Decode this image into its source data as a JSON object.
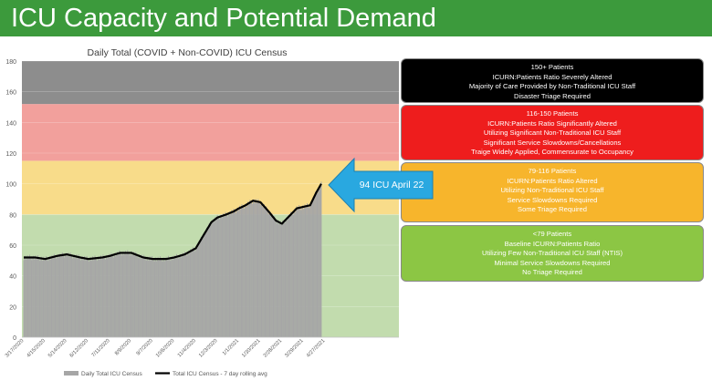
{
  "header": {
    "title": "ICU Capacity and Potential Demand"
  },
  "colors": {
    "header_green": "#3c9a3c",
    "zone_gray": "#8d8d8d",
    "zone_red": "#f2a09c",
    "zone_yellow": "#f8dc8a",
    "zone_green": "#c2dcae",
    "bar_gray": "#a6a6a6",
    "line_black": "#000000",
    "callout_blue": "#29a8e0"
  },
  "chart_data": {
    "type": "bar",
    "title": "Daily Total (COVID + Non-COVID) ICU Census",
    "xlabel": "",
    "ylabel": "",
    "ylim": [
      0,
      180
    ],
    "yticks": [
      0,
      20,
      40,
      60,
      80,
      100,
      120,
      140,
      160,
      180
    ],
    "x_tick_labels": [
      "3/17/2020",
      "4/15/2020",
      "5/14/2020",
      "6/12/2020",
      "7/11/2020",
      "8/9/2020",
      "9/7/2020",
      "10/6/2020",
      "11/4/2020",
      "12/3/2020",
      "1/1/2021",
      "1/30/2021",
      "2/28/2021",
      "3/29/2021",
      "4/27/2021"
    ],
    "zones": [
      {
        "from": 0,
        "to": 80,
        "color": "#c2dcae"
      },
      {
        "from": 80,
        "to": 115,
        "color": "#f8dc8a"
      },
      {
        "from": 115,
        "to": 152,
        "color": "#f2a09c"
      },
      {
        "from": 152,
        "to": 180,
        "color": "#8d8d8d"
      }
    ],
    "series": [
      {
        "name": "Daily Total ICU Census",
        "type": "bar",
        "color": "#a6a6a6"
      },
      {
        "name": "Total ICU Census - 7 day rolling avg",
        "type": "line",
        "color": "#000000"
      }
    ],
    "keypoints": [
      {
        "x": "3/17/2020",
        "y": 52
      },
      {
        "x": "4/1/2020",
        "y": 52
      },
      {
        "x": "4/15/2020",
        "y": 51
      },
      {
        "x": "5/1/2020",
        "y": 53
      },
      {
        "x": "5/14/2020",
        "y": 54
      },
      {
        "x": "6/1/2020",
        "y": 52
      },
      {
        "x": "6/12/2020",
        "y": 51
      },
      {
        "x": "7/1/2020",
        "y": 52
      },
      {
        "x": "7/11/2020",
        "y": 53
      },
      {
        "x": "7/25/2020",
        "y": 55
      },
      {
        "x": "8/9/2020",
        "y": 55
      },
      {
        "x": "8/25/2020",
        "y": 52
      },
      {
        "x": "9/7/2020",
        "y": 51
      },
      {
        "x": "9/25/2020",
        "y": 51
      },
      {
        "x": "10/6/2020",
        "y": 52
      },
      {
        "x": "10/20/2020",
        "y": 54
      },
      {
        "x": "11/4/2020",
        "y": 58
      },
      {
        "x": "11/15/2020",
        "y": 67
      },
      {
        "x": "11/25/2020",
        "y": 75
      },
      {
        "x": "12/3/2020",
        "y": 78
      },
      {
        "x": "12/15/2020",
        "y": 80
      },
      {
        "x": "12/25/2020",
        "y": 82
      },
      {
        "x": "1/1/2021",
        "y": 84
      },
      {
        "x": "1/10/2021",
        "y": 86
      },
      {
        "x": "1/20/2021",
        "y": 89
      },
      {
        "x": "1/30/2021",
        "y": 88
      },
      {
        "x": "2/10/2021",
        "y": 82
      },
      {
        "x": "2/20/2021",
        "y": 76
      },
      {
        "x": "2/28/2021",
        "y": 74
      },
      {
        "x": "3/10/2021",
        "y": 79
      },
      {
        "x": "3/20/2021",
        "y": 84
      },
      {
        "x": "3/29/2021",
        "y": 85
      },
      {
        "x": "4/7/2021",
        "y": 86
      },
      {
        "x": "4/15/2021",
        "y": 94
      },
      {
        "x": "4/22/2021",
        "y": 100
      }
    ],
    "legend": {
      "position": "bottom",
      "bar_label": "Daily Total ICU Census",
      "line_label": "Total ICU Census - 7 day rolling avg"
    },
    "annotation": {
      "text": "94 ICU April 22"
    }
  },
  "tiers": [
    {
      "lines": [
        "150+ Patients",
        "ICURN:Patients Ratio Severely Altered",
        "Majority of Care Provided by Non-Traditional ICU Staff",
        "Disaster Triage Required"
      ]
    },
    {
      "lines": [
        "116-150 Patients",
        "ICURN:Patients Ratio Significantly Altered",
        "Utilizing Significant Non-Traditional ICU Staff",
        "Significant Service Slowdowns/Cancellations",
        "Traige Widely Applied, Commensurate to Occupancy"
      ]
    },
    {
      "lines": [
        "79-116 Patients",
        "ICURN:Patients Ratio Altered",
        "Utilizing Non-Traditional ICU Staff",
        "Service Slowdowns Required",
        "Some Triage Required"
      ]
    },
    {
      "lines": [
        "<79 Patients",
        "Baseline ICURN:Patients Ratio",
        "Utilizing Few Non-Traditional ICU Staff (NTIS)",
        "Minimal Service Slowdowns Required",
        "No Triage Required"
      ]
    }
  ]
}
